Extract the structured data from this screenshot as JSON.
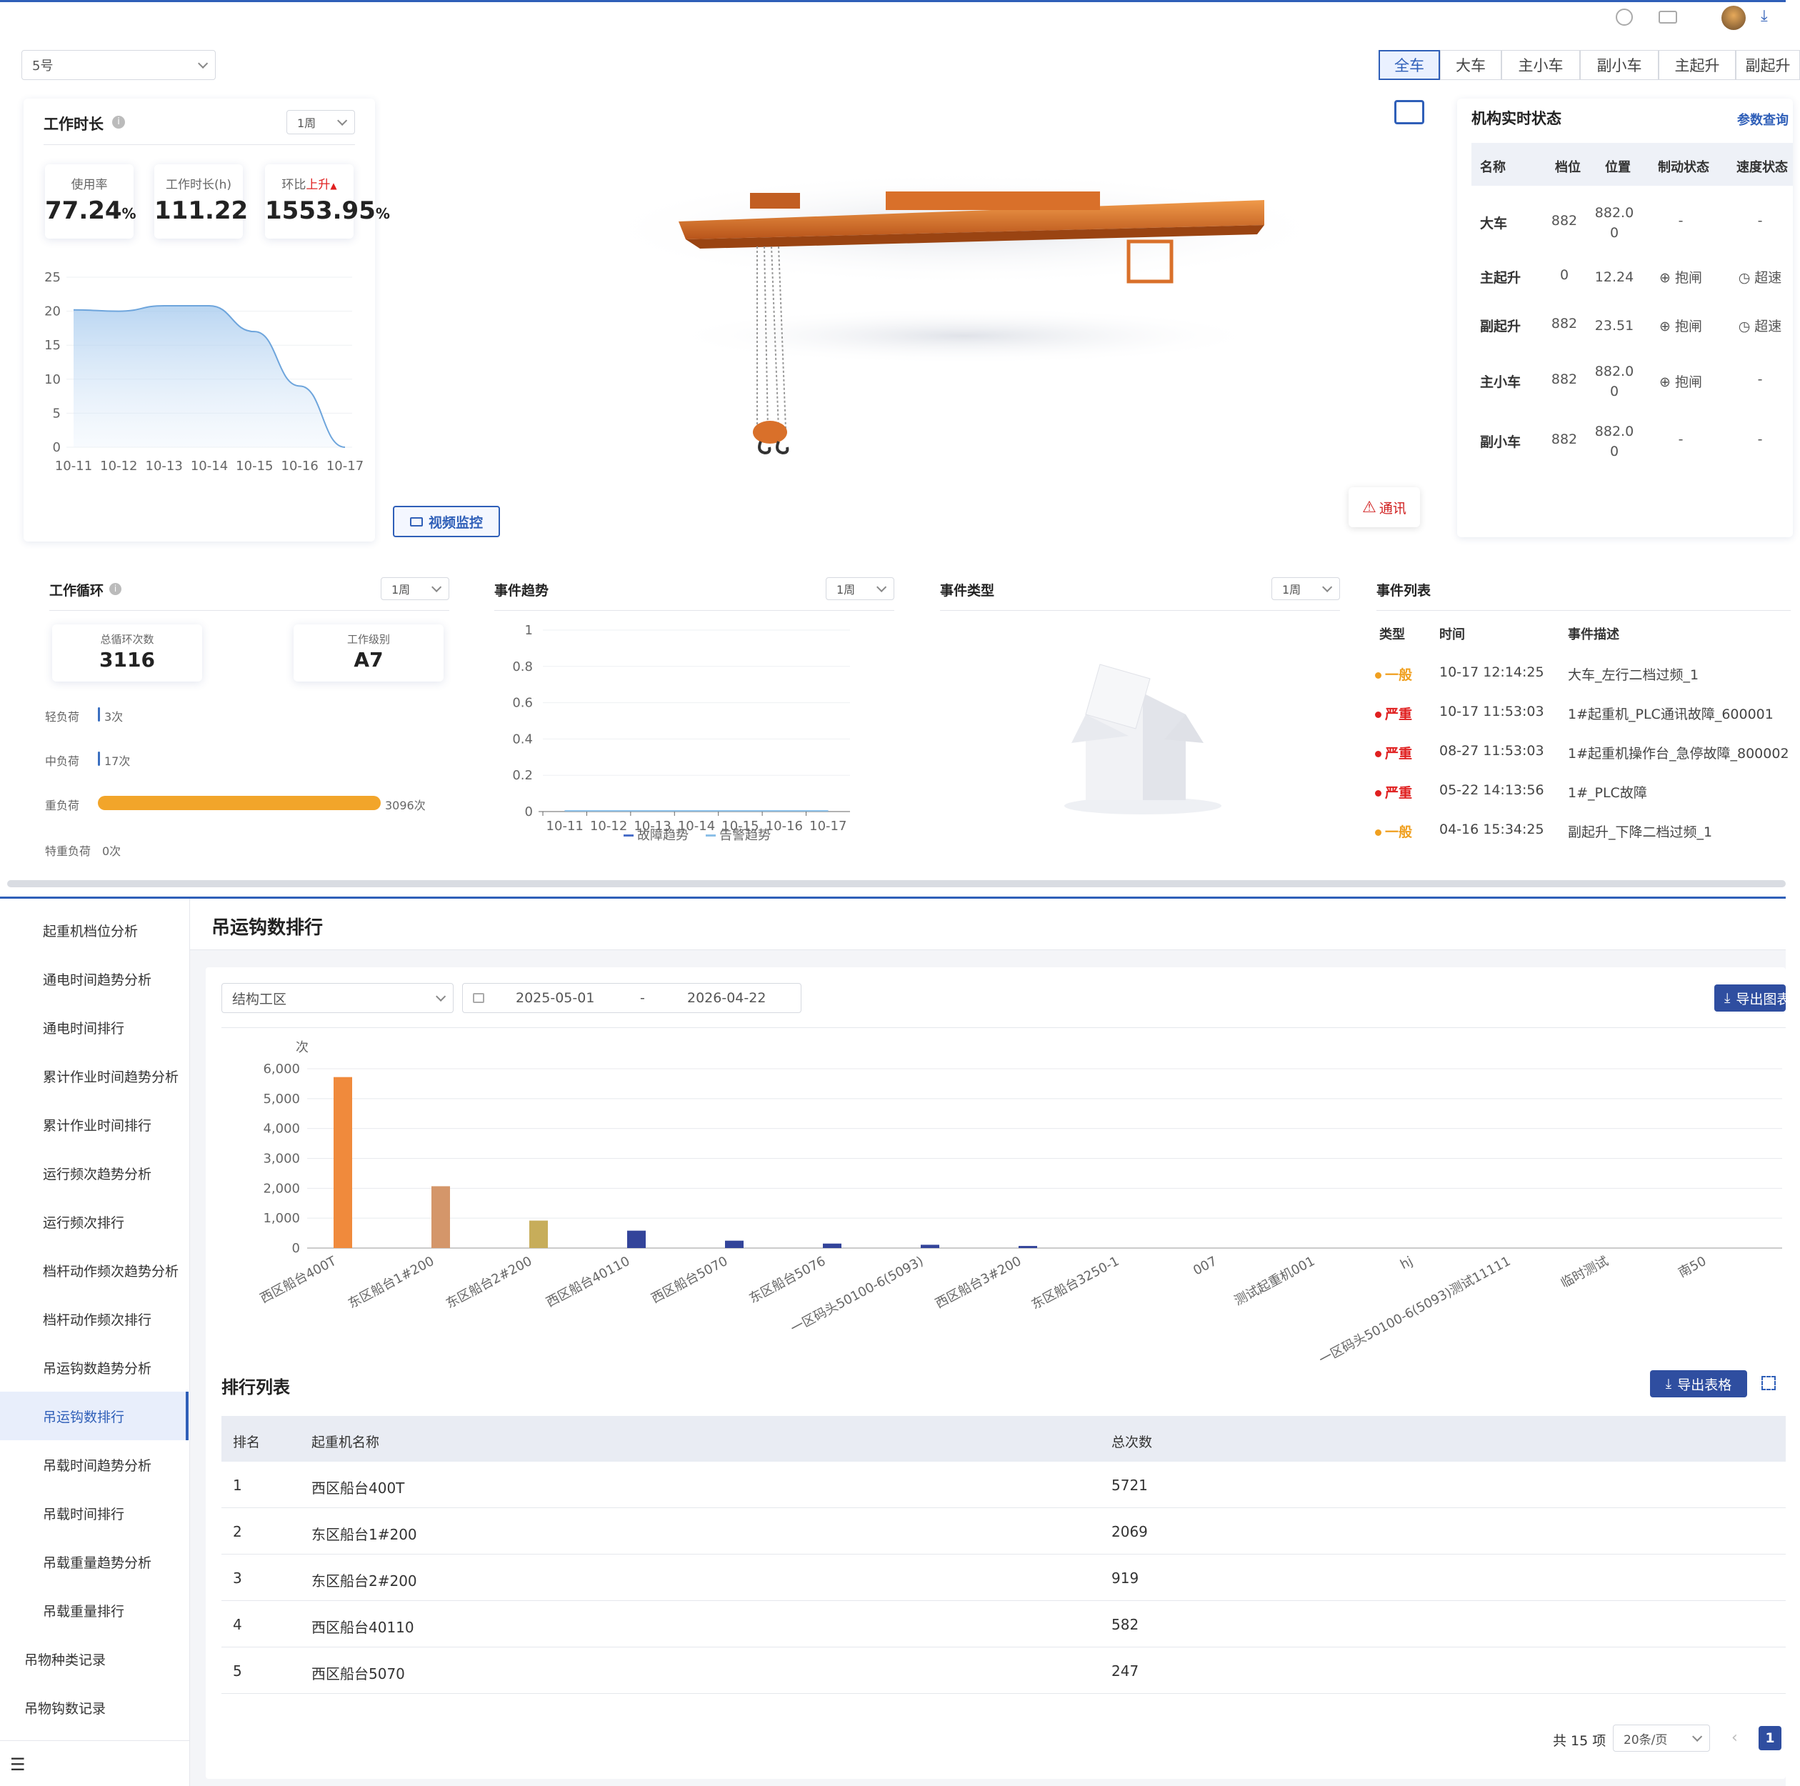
{
  "top": {
    "crane_select": "5号",
    "tabs": [
      {
        "label": "全车",
        "active": true
      },
      {
        "label": "大车",
        "active": false
      },
      {
        "label": "主小车",
        "active": false
      },
      {
        "label": "副小车",
        "active": false
      },
      {
        "label": "主起升",
        "active": false
      },
      {
        "label": "副起升",
        "active": false
      }
    ],
    "work_hours": {
      "title": "工作时长",
      "period": "1周",
      "usage_label": "使用率",
      "usage_value": "77.24",
      "usage_unit": "%",
      "hours_label": "工作时长(h)",
      "hours_value": "111.22",
      "ratio_label": "环比",
      "ratio_trend": "上升",
      "ratio_value": "1553.95",
      "ratio_unit": "%"
    },
    "video_button": "视频监控",
    "comm_alert": "通讯",
    "realtime": {
      "title": "机构实时状态",
      "link": "参数查询",
      "headers": [
        "名称",
        "档位",
        "位置",
        "制动状态",
        "速度状态"
      ],
      "rows": [
        {
          "name": "大车",
          "gear": "882",
          "pos": "882.0\n0",
          "brake": "-",
          "speed": "-"
        },
        {
          "name": "主起升",
          "gear": "0",
          "pos": "12.24",
          "brake": "抱闸",
          "speed": "超速"
        },
        {
          "name": "副起升",
          "gear": "882",
          "pos": "23.51",
          "brake": "抱闸",
          "speed": "超速"
        },
        {
          "name": "主小车",
          "gear": "882",
          "pos": "882.0\n0",
          "brake": "抱闸",
          "speed": "-"
        },
        {
          "name": "副小车",
          "gear": "882",
          "pos": "882.0\n0",
          "brake": "-",
          "speed": "-"
        }
      ]
    },
    "work_cycle": {
      "title": "工作循环",
      "period": "1周",
      "total_label": "总循环次数",
      "total_value": "3116",
      "level_label": "工作级别",
      "level_value": "A7",
      "loads": [
        {
          "label": "轻负荷",
          "count": "3次",
          "value": 3
        },
        {
          "label": "中负荷",
          "count": "17次",
          "value": 17
        },
        {
          "label": "重负荷",
          "count": "3096次",
          "value": 3096
        },
        {
          "label": "特重负荷",
          "count": "0次",
          "value": 0
        }
      ]
    },
    "event_trend": {
      "title": "事件趋势",
      "period": "1周",
      "legend_fault": "故障趋势",
      "legend_alarm": "告警趋势"
    },
    "event_type": {
      "title": "事件类型",
      "period": "1周"
    },
    "event_list": {
      "title": "事件列表",
      "headers": [
        "类型",
        "时间",
        "事件描述"
      ],
      "rows": [
        {
          "type": "一般",
          "color": "#f0a020",
          "time": "10-17 12:14:25",
          "desc": "大车_左行二档过频_1"
        },
        {
          "type": "严重",
          "color": "#e02020",
          "time": "10-17 11:53:03",
          "desc": "1#起重机_PLC通讯故障_600001"
        },
        {
          "type": "严重",
          "color": "#e02020",
          "time": "08-27 11:53:03",
          "desc": "1#起重机操作台_急停故障_800002"
        },
        {
          "type": "严重",
          "color": "#e02020",
          "time": "05-22 14:13:56",
          "desc": "1#_PLC故障"
        },
        {
          "type": "一般",
          "color": "#f0a020",
          "time": "04-16 15:34:25",
          "desc": "副起升_下降二档过频_1"
        }
      ]
    }
  },
  "sidebar": {
    "items": [
      {
        "label": "起重机档位分析",
        "active": false,
        "indent": true
      },
      {
        "label": "通电时间趋势分析",
        "active": false,
        "indent": true
      },
      {
        "label": "通电时间排行",
        "active": false,
        "indent": true
      },
      {
        "label": "累计作业时间趋势分析",
        "active": false,
        "indent": true
      },
      {
        "label": "累计作业时间排行",
        "active": false,
        "indent": true
      },
      {
        "label": "运行频次趋势分析",
        "active": false,
        "indent": true
      },
      {
        "label": "运行频次排行",
        "active": false,
        "indent": true
      },
      {
        "label": "档杆动作频次趋势分析",
        "active": false,
        "indent": true
      },
      {
        "label": "档杆动作频次排行",
        "active": false,
        "indent": true
      },
      {
        "label": "吊运钩数趋势分析",
        "active": false,
        "indent": true
      },
      {
        "label": "吊运钩数排行",
        "active": true,
        "indent": true
      },
      {
        "label": "吊载时间趋势分析",
        "active": false,
        "indent": true
      },
      {
        "label": "吊载时间排行",
        "active": false,
        "indent": true
      },
      {
        "label": "吊载重量趋势分析",
        "active": false,
        "indent": true
      },
      {
        "label": "吊载重量排行",
        "active": false,
        "indent": true
      },
      {
        "label": "吊物种类记录",
        "active": false,
        "indent": false
      },
      {
        "label": "吊物钩数记录",
        "active": false,
        "indent": false
      }
    ]
  },
  "ranking": {
    "page_title": "吊运钩数排行",
    "area_select": "结构工区",
    "date_start": "2025-05-01",
    "date_sep": "-",
    "date_end": "2026-04-22",
    "export_chart": "导出图表",
    "list_title": "排行列表",
    "export_table": "导出表格",
    "table_headers": [
      "排名",
      "起重机名称",
      "总次数"
    ],
    "rows": [
      {
        "rank": "1",
        "name": "西区船台400T",
        "total": "5721"
      },
      {
        "rank": "2",
        "name": "东区船台1#200",
        "total": "2069"
      },
      {
        "rank": "3",
        "name": "东区船台2#200",
        "total": "919"
      },
      {
        "rank": "4",
        "name": "西区船台40110",
        "total": "582"
      },
      {
        "rank": "5",
        "name": "西区船台5070",
        "total": "247"
      }
    ],
    "total_text": "共 15 项",
    "page_size": "20条/页",
    "current_page": "1"
  },
  "chart_data": [
    {
      "type": "area",
      "ylim": [
        0,
        25
      ],
      "yticks": [
        "0",
        "5",
        "10",
        "15",
        "20",
        "25"
      ],
      "categories": [
        "10-11",
        "10-12",
        "10-13",
        "10-14",
        "10-15",
        "10-16",
        "10-17"
      ],
      "values": [
        20.2,
        20.0,
        20.8,
        20.8,
        17.0,
        9.0,
        0.0
      ]
    },
    {
      "type": "line",
      "ylim": [
        0,
        1
      ],
      "yticks": [
        "0",
        "0.2",
        "0.4",
        "0.6",
        "0.8",
        "1"
      ],
      "categories": [
        "10-11",
        "10-12",
        "10-13",
        "10-14",
        "10-15",
        "10-16",
        "10-17"
      ],
      "series": [
        {
          "name": "故障趋势",
          "values": [
            0,
            0,
            0,
            0,
            0,
            0,
            0
          ]
        },
        {
          "name": "告警趋势",
          "values": [
            0,
            0,
            0,
            0,
            0,
            0,
            0
          ]
        }
      ]
    },
    {
      "type": "bar",
      "ylabel": "次",
      "ylim": [
        0,
        6000
      ],
      "yticks": [
        "0",
        "1,000",
        "2,000",
        "3,000",
        "4,000",
        "5,000",
        "6,000"
      ],
      "categories": [
        "西区船台400T",
        "东区船台1#200",
        "东区船台2#200",
        "西区船台40110",
        "西区船台5070",
        "东区船台5076",
        "一区码头50100-6(5093)",
        "西区船台3#200",
        "东区船台3250-1",
        "007",
        "测试起重机001",
        "hj",
        "一区码头50100-6(5093)测试11111",
        "临时测试",
        "南50"
      ],
      "values": [
        5721,
        2069,
        919,
        582,
        247,
        150,
        110,
        70,
        0,
        0,
        0,
        0,
        0,
        0,
        0
      ],
      "colors": [
        "#f08a3c",
        "#d4966a",
        "#c7ad5a",
        "#33449a",
        "#33449a",
        "#33449a",
        "#33449a",
        "#33449a",
        "#33449a",
        "#33449a",
        "#33449a",
        "#33449a",
        "#33449a",
        "#33449a",
        "#33449a"
      ]
    }
  ]
}
